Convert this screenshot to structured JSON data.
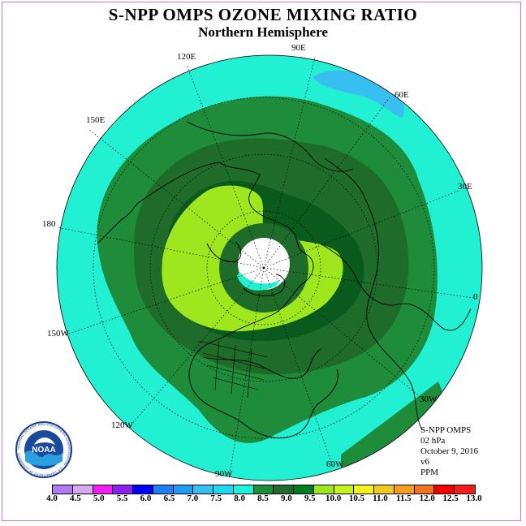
{
  "header": {
    "title": "S-NPP OMPS OZONE MIXING RATIO",
    "subtitle": "Northern Hemisphere"
  },
  "map": {
    "longitude_labels": [
      "90E",
      "60E",
      "30E",
      "0",
      "30W",
      "60W",
      "90W",
      "120W",
      "150W",
      "180",
      "150E",
      "120E"
    ]
  },
  "info": {
    "instrument": "S-NPP OMPS",
    "level": "02 hPa",
    "date": "October 9, 2016",
    "version": "v6",
    "units": "PPM"
  },
  "colorbar": {
    "colors": [
      "#b379f2",
      "#d9a6f2",
      "#f21ef2",
      "#8c1ef2",
      "#0000f2",
      "#1e7ff2",
      "#1e9ef2",
      "#38bff2",
      "#1ed9f2",
      "#1ef2d9",
      "#1e8c3a",
      "#1e6b2a",
      "#007a1e",
      "#9ee61e",
      "#c7f21e",
      "#f2f21e",
      "#f2c71e",
      "#f29e1e",
      "#f2731e",
      "#f20000",
      "#f21e1e"
    ],
    "tick_labels": [
      "4.0",
      "4.5",
      "5.0",
      "5.5",
      "6.0",
      "6.5",
      "7.0",
      "7.5",
      "8.0",
      "8.5",
      "9.0",
      "9.5",
      "10.0",
      "10.5",
      "11.0",
      "11.5",
      "12.0",
      "12.5",
      "13.0"
    ]
  },
  "logo": {
    "text": "NOAA",
    "ring_text": "NATIONAL OCEANIC AND ATMOSPHERIC ADMINISTRATION · U.S. DEPARTMENT OF COMMERCE"
  }
}
